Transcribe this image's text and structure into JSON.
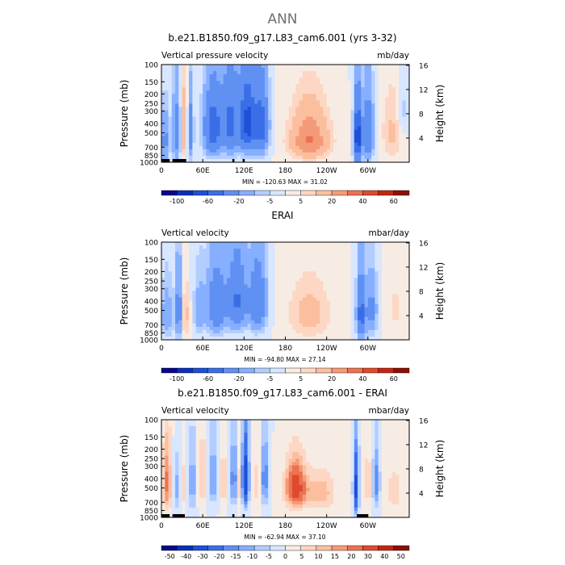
{
  "page": {
    "main_title": "ANN"
  },
  "colors": {
    "palette_full": [
      "#08088a",
      "#0b2fb8",
      "#1e50d6",
      "#3a6ee8",
      "#5f90f2",
      "#86afff",
      "#b3cdff",
      "#d8e6ff",
      "#f7ece4",
      "#fdd7c4",
      "#fbbf9f",
      "#f59a78",
      "#ec7251",
      "#df4a2e",
      "#c22713",
      "#8a1006"
    ],
    "palette_diff": [
      "#08088a",
      "#0b2fb8",
      "#1e50d6",
      "#3a6ee8",
      "#5f90f2",
      "#86afff",
      "#b3cdff",
      "#d8e6ff",
      "#f7ece4",
      "#fdd7c4",
      "#fbbf9f",
      "#f59a78",
      "#ec7251",
      "#df4a2e",
      "#c22713",
      "#8a1006"
    ]
  },
  "chart_data": [
    {
      "type": "heatmap",
      "title": "b.e21.B1850.f09_g17.L83_cam6.001 (yrs 3-32)",
      "left_label": "Vertical pressure velocity",
      "right_label": "mb/day",
      "ylabel": "Pressure (mb)",
      "ylabel_right": "Height (km)",
      "x_ticks": [
        "0",
        "60E",
        "120E",
        "180",
        "120W",
        "60W"
      ],
      "x_tick_lon": [
        0,
        60,
        120,
        180,
        240,
        300
      ],
      "xlim": [
        0,
        360
      ],
      "y_ticks": [
        100,
        150,
        200,
        250,
        300,
        400,
        500,
        700,
        850,
        1000
      ],
      "y_tick_labels": [
        "100",
        "150",
        "200",
        "250",
        "300",
        "400",
        "500",
        "700",
        "850",
        "1000"
      ],
      "ylim": [
        100,
        1000
      ],
      "height_ticks": [
        "4",
        "8",
        "12",
        "16"
      ],
      "height_tick_km": [
        4,
        8,
        12,
        16
      ],
      "stats": "MIN = -120.63   MAX =  31.02",
      "min": -120.63,
      "max": 31.02,
      "colorbar_labels": [
        "-100",
        "-60",
        "-20",
        "-5",
        "5",
        "20",
        "40",
        "60"
      ],
      "levels": [
        -120,
        -100,
        -80,
        -60,
        -40,
        -20,
        -10,
        -5,
        0,
        5,
        10,
        20,
        30,
        40,
        50,
        60,
        70
      ],
      "palette": "palette_full",
      "features": [
        {
          "lon": 5,
          "p": 600,
          "amp": -25,
          "wlon": 6,
          "wp": 350
        },
        {
          "lon": 22,
          "p": 500,
          "amp": -30,
          "wlon": 6,
          "wp": 400
        },
        {
          "lon": 33,
          "p": 450,
          "amp": 18,
          "wlon": 5,
          "wp": 400
        },
        {
          "lon": 42,
          "p": 500,
          "amp": -35,
          "wlon": 4,
          "wp": 350
        },
        {
          "lon": 75,
          "p": 450,
          "amp": -55,
          "wlon": 13,
          "wp": 330
        },
        {
          "lon": 100,
          "p": 400,
          "amp": -45,
          "wlon": 12,
          "wp": 350
        },
        {
          "lon": 125,
          "p": 400,
          "amp": -70,
          "wlon": 12,
          "wp": 320
        },
        {
          "lon": 145,
          "p": 420,
          "amp": -50,
          "wlon": 10,
          "wp": 330
        },
        {
          "lon": 215,
          "p": 620,
          "amp": 30,
          "wlon": 28,
          "wp": 270
        },
        {
          "lon": 215,
          "p": 300,
          "amp": 10,
          "wlon": 25,
          "wp": 200
        },
        {
          "lon": 285,
          "p": 560,
          "amp": -80,
          "wlon": 5,
          "wp": 380
        },
        {
          "lon": 300,
          "p": 500,
          "amp": -40,
          "wlon": 8,
          "wp": 350
        },
        {
          "lon": 335,
          "p": 500,
          "amp": 12,
          "wlon": 14,
          "wp": 380
        },
        {
          "lon": 350,
          "p": 300,
          "amp": -8,
          "wlon": 8,
          "wp": 200
        }
      ],
      "topo": [
        [
          0,
          12
        ],
        [
          16,
          30
        ],
        [
          30,
          36
        ],
        [
          103,
          106
        ],
        [
          118,
          121
        ]
      ]
    },
    {
      "type": "heatmap",
      "title": "ERAI",
      "left_label": "Vertical velocity",
      "right_label": "mbar/day",
      "ylabel": "Pressure (mb)",
      "ylabel_right": "Height (km)",
      "x_ticks": [
        "0",
        "60E",
        "120E",
        "180",
        "120W",
        "60W"
      ],
      "x_tick_lon": [
        0,
        60,
        120,
        180,
        240,
        300
      ],
      "xlim": [
        0,
        360
      ],
      "y_ticks": [
        100,
        150,
        200,
        250,
        300,
        400,
        500,
        700,
        850,
        1000
      ],
      "y_tick_labels": [
        "100",
        "150",
        "200",
        "250",
        "300",
        "400",
        "500",
        "700",
        "850",
        "1000"
      ],
      "ylim": [
        100,
        1000
      ],
      "height_ticks": [
        "4",
        "8",
        "12",
        "16"
      ],
      "height_tick_km": [
        4,
        8,
        12,
        16
      ],
      "stats": "MIN = -94.80   MAX =  27.14",
      "min": -94.8,
      "max": 27.14,
      "colorbar_labels": [
        "-100",
        "-60",
        "-20",
        "-5",
        "5",
        "20",
        "40",
        "60"
      ],
      "levels": [
        -120,
        -100,
        -80,
        -60,
        -40,
        -20,
        -10,
        -5,
        0,
        5,
        10,
        20,
        30,
        40,
        50,
        60,
        70
      ],
      "palette": "palette_full",
      "features": [
        {
          "lon": 8,
          "p": 550,
          "amp": -18,
          "wlon": 8,
          "wp": 350
        },
        {
          "lon": 25,
          "p": 500,
          "amp": -30,
          "wlon": 5,
          "wp": 400
        },
        {
          "lon": 35,
          "p": 550,
          "amp": 14,
          "wlon": 5,
          "wp": 350
        },
        {
          "lon": 55,
          "p": 500,
          "amp": -15,
          "wlon": 8,
          "wp": 350
        },
        {
          "lon": 80,
          "p": 450,
          "amp": -38,
          "wlon": 14,
          "wp": 340
        },
        {
          "lon": 110,
          "p": 400,
          "amp": -42,
          "wlon": 14,
          "wp": 330
        },
        {
          "lon": 140,
          "p": 420,
          "amp": -40,
          "wlon": 12,
          "wp": 330
        },
        {
          "lon": 215,
          "p": 550,
          "amp": 14,
          "wlon": 30,
          "wp": 350
        },
        {
          "lon": 290,
          "p": 550,
          "amp": -50,
          "wlon": 6,
          "wp": 380
        },
        {
          "lon": 305,
          "p": 500,
          "amp": -25,
          "wlon": 8,
          "wp": 350
        },
        {
          "lon": 340,
          "p": 500,
          "amp": 6,
          "wlon": 14,
          "wp": 380
        }
      ],
      "topo": []
    },
    {
      "type": "heatmap",
      "title": "b.e21.B1850.f09_g17.L83_cam6.001 - ERAI",
      "left_label": "Vertical velocity",
      "right_label": "mbar/day",
      "ylabel": "Pressure (mb)",
      "ylabel_right": "Height (km)",
      "x_ticks": [
        "0",
        "60E",
        "120E",
        "180",
        "120W",
        "60W"
      ],
      "x_tick_lon": [
        0,
        60,
        120,
        180,
        240,
        300
      ],
      "xlim": [
        0,
        360
      ],
      "y_ticks": [
        100,
        150,
        200,
        250,
        300,
        400,
        500,
        700,
        850,
        1000
      ],
      "y_tick_labels": [
        "100",
        "150",
        "200",
        "250",
        "300",
        "400",
        "500",
        "700",
        "850",
        "1000"
      ],
      "ylim": [
        100,
        1000
      ],
      "height_ticks": [
        "4",
        "8",
        "12",
        "16"
      ],
      "height_tick_km": [
        4,
        8,
        12,
        16
      ],
      "stats": "MIN = -62.94   MAX =  37.10",
      "min": -62.94,
      "max": 37.1,
      "colorbar_labels": [
        "-50",
        "-40",
        "-30",
        "-20",
        "-15",
        "-10",
        "-5",
        "0",
        "5",
        "10",
        "15",
        "20",
        "30",
        "40",
        "50"
      ],
      "levels": [
        -60,
        -50,
        -40,
        -30,
        -20,
        -15,
        -10,
        -5,
        0,
        5,
        10,
        15,
        20,
        30,
        40,
        50,
        60
      ],
      "palette": "palette_diff",
      "features": [
        {
          "lon": 8,
          "p": 450,
          "amp": 22,
          "wlon": 6,
          "wp": 350
        },
        {
          "lon": 22,
          "p": 500,
          "amp": -12,
          "wlon": 4,
          "wp": 300
        },
        {
          "lon": 32,
          "p": 500,
          "amp": 8,
          "wlon": 3,
          "wp": 300
        },
        {
          "lon": 45,
          "p": 450,
          "amp": -18,
          "wlon": 4,
          "wp": 350
        },
        {
          "lon": 60,
          "p": 400,
          "amp": 12,
          "wlon": 5,
          "wp": 300
        },
        {
          "lon": 75,
          "p": 400,
          "amp": -18,
          "wlon": 5,
          "wp": 300
        },
        {
          "lon": 90,
          "p": 450,
          "amp": 10,
          "wlon": 5,
          "wp": 300
        },
        {
          "lon": 105,
          "p": 400,
          "amp": -20,
          "wlon": 5,
          "wp": 330
        },
        {
          "lon": 113,
          "p": 450,
          "amp": 10,
          "wlon": 3,
          "wp": 300
        },
        {
          "lon": 122,
          "p": 400,
          "amp": -40,
          "wlon": 5,
          "wp": 320
        },
        {
          "lon": 140,
          "p": 450,
          "amp": 8,
          "wlon": 6,
          "wp": 300
        },
        {
          "lon": 150,
          "p": 400,
          "amp": -22,
          "wlon": 5,
          "wp": 320
        },
        {
          "lon": 195,
          "p": 500,
          "amp": 38,
          "wlon": 14,
          "wp": 250
        },
        {
          "lon": 230,
          "p": 560,
          "amp": 14,
          "wlon": 22,
          "wp": 250
        },
        {
          "lon": 283,
          "p": 500,
          "amp": -35,
          "wlon": 4,
          "wp": 380
        },
        {
          "lon": 300,
          "p": 450,
          "amp": 10,
          "wlon": 5,
          "wp": 300
        },
        {
          "lon": 312,
          "p": 450,
          "amp": -20,
          "wlon": 5,
          "wp": 300
        },
        {
          "lon": 338,
          "p": 550,
          "amp": 8,
          "wlon": 12,
          "wp": 300
        }
      ],
      "topo": [
        [
          0,
          12
        ],
        [
          16,
          34
        ],
        [
          103,
          106
        ],
        [
          118,
          121
        ],
        [
          284,
          300
        ]
      ]
    }
  ]
}
